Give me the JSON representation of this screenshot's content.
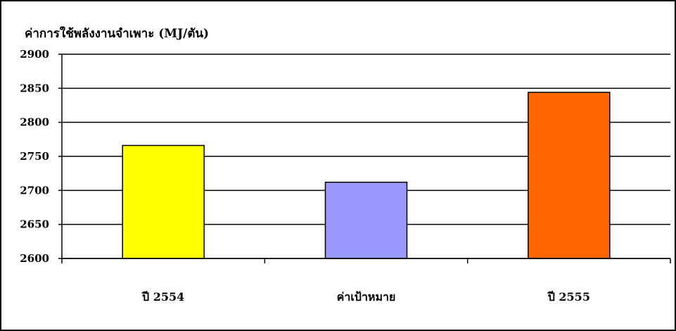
{
  "chart_data": {
    "type": "bar",
    "title": "ค่าการใช้พลังงานจำเพาะ (MJ/ตัน)",
    "xlabel": "",
    "ylabel": "",
    "categories": [
      "ปี 2554",
      "ค่าเป้าหมาย",
      "ปี 2555"
    ],
    "values": [
      2766,
      2712,
      2844
    ],
    "colors": [
      "#ffff00",
      "#9999ff",
      "#ff6600"
    ],
    "ylim": [
      2600,
      2900
    ],
    "yticks": [
      2600,
      2650,
      2700,
      2750,
      2800,
      2850,
      2900
    ],
    "grid": true,
    "legend": "none"
  }
}
